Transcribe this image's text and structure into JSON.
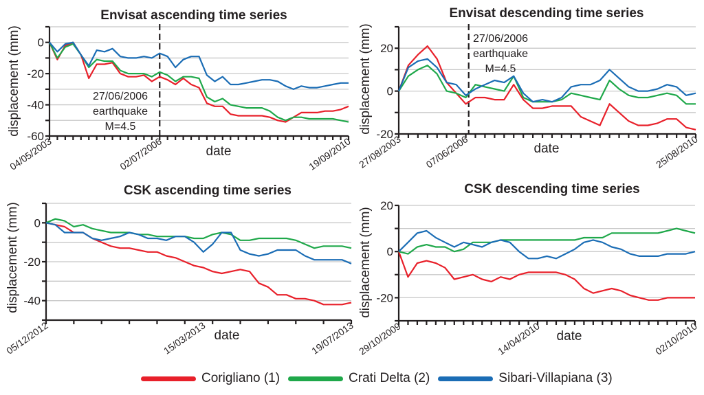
{
  "legend": [
    {
      "label": "Corigliano (1)",
      "color": "#e8202a"
    },
    {
      "label": "Crati Delta (2)",
      "color": "#1fa84a"
    },
    {
      "label": "Sibari-Villapiana (3)",
      "color": "#1b6db5"
    }
  ],
  "chart_data": [
    {
      "type": "line",
      "title": "Envisat ascending time series",
      "xlabel": "date",
      "ylabel": "displacement (mm)",
      "ylim": [
        -60,
        10
      ],
      "yticks": [
        0,
        -20,
        -40,
        -60
      ],
      "ytick_labels": [
        "0",
        "-20",
        "-40",
        "-60"
      ],
      "xtick_labels": [
        "04/05/2003",
        "02/07/2006",
        "19/09/2010"
      ],
      "xtick_label_index": [
        0,
        14,
        38
      ],
      "n_points": 39,
      "grid": true,
      "annotation": {
        "lines": [
          "27/06/2006",
          "earthquake",
          "M=4.5"
        ],
        "event_index": 14
      },
      "series": [
        {
          "name": "Corigliano (1)",
          "values": [
            0,
            -11,
            -2,
            0,
            -8,
            -23,
            -14,
            -14,
            -13,
            -20,
            -22,
            -22,
            -21,
            -25,
            -22,
            -24,
            -27,
            -23,
            -27,
            -29,
            -39,
            -41,
            -41,
            -46,
            -47,
            -47,
            -47,
            -47,
            -48,
            -50,
            -51,
            -48,
            -45,
            -45,
            -45,
            -44,
            -44,
            -43,
            -41
          ]
        },
        {
          "name": "Crati Delta (2)",
          "values": [
            0,
            -10,
            -3,
            -1,
            -8,
            -16,
            -11,
            -12,
            -12,
            -18,
            -20,
            -20,
            -20,
            -22,
            -19,
            -21,
            -25,
            -22,
            -22,
            -23,
            -35,
            -38,
            -36,
            -40,
            -41,
            -42,
            -42,
            -42,
            -44,
            -48,
            -50,
            -48,
            -48,
            -49,
            -49,
            -49,
            -49,
            -50,
            -51
          ]
        },
        {
          "name": "Sibari-Villapiana (3)",
          "values": [
            0,
            -6,
            -1,
            0,
            -8,
            -15,
            -5,
            -6,
            -4,
            -9,
            -10,
            -10,
            -9,
            -10,
            -7,
            -9,
            -16,
            -11,
            -9,
            -9,
            -21,
            -25,
            -22,
            -27,
            -27,
            -26,
            -25,
            -24,
            -24,
            -25,
            -28,
            -30,
            -28,
            -29,
            -29,
            -28,
            -27,
            -26,
            -26
          ]
        }
      ]
    },
    {
      "type": "line",
      "title": "Envisat descending time series",
      "xlabel": "date",
      "ylabel": "displacement (mm)",
      "ylim": [
        -20,
        30
      ],
      "yticks": [
        20,
        0,
        -20
      ],
      "ytick_labels": [
        "20",
        "0",
        "-20"
      ],
      "gridlines": [
        30,
        20,
        10,
        0,
        -10,
        -20
      ],
      "xtick_labels": [
        "27/08/2003",
        "07/06/2006",
        "25/08/2010"
      ],
      "xtick_label_index": [
        0,
        7,
        31
      ],
      "n_points": 32,
      "grid": true,
      "annotation": {
        "lines": [
          "27/06/2006",
          "earthquake",
          "M=4.5"
        ],
        "event_index": 7.3
      },
      "series": [
        {
          "name": "Corigliano (1)",
          "values": [
            0,
            12,
            17,
            21,
            15,
            4,
            -1,
            -6,
            -3,
            -3,
            -4,
            -4,
            3,
            -4,
            -8,
            -8,
            -7,
            -7,
            -7,
            -12,
            -14,
            -16,
            -6,
            -10,
            -14,
            -16,
            -16,
            -15,
            -13,
            -13,
            -17,
            -18
          ]
        },
        {
          "name": "Crati Delta (2)",
          "values": [
            0,
            7,
            10,
            12,
            8,
            0,
            -1,
            -3,
            3,
            2,
            1,
            0,
            7,
            -3,
            -5,
            -5,
            -5,
            -4,
            -1,
            -2,
            -3,
            -4,
            5,
            1,
            -2,
            -3,
            -3,
            -2,
            -1,
            -2,
            -6,
            -6
          ]
        },
        {
          "name": "Sibari-Villapiana (3)",
          "values": [
            0,
            11,
            14,
            15,
            11,
            4,
            3,
            -2,
            1,
            3,
            5,
            4,
            7,
            -1,
            -5,
            -4,
            -5,
            -3,
            2,
            3,
            3,
            5,
            10,
            6,
            2,
            0,
            0,
            1,
            3,
            2,
            -2,
            -1
          ]
        }
      ]
    },
    {
      "type": "line",
      "title": "CSK ascending time series",
      "xlabel": "date",
      "ylabel": "displacement (mm)",
      "ylim": [
        -50,
        10
      ],
      "yticks": [
        0,
        -20,
        -40
      ],
      "ytick_labels": [
        "0",
        "-20",
        "-40"
      ],
      "gridlines": [
        10,
        0,
        -10,
        -20,
        -30,
        -40
      ],
      "xtick_labels": [
        "05/12/2012",
        "15/03/2013",
        "19/07/2013"
      ],
      "xtick_label_index": [
        0,
        17,
        33
      ],
      "n_points": 34,
      "major_ticks": 11,
      "grid": true,
      "series": [
        {
          "name": "Corigliano (1)",
          "values": [
            0,
            -1,
            -2,
            -5,
            -5,
            -8,
            -10,
            -12,
            -13,
            -13,
            -14,
            -15,
            -15,
            -17,
            -18,
            -20,
            -22,
            -23,
            -25,
            -26,
            -25,
            -24,
            -25,
            -31,
            -33,
            -37,
            -37,
            -39,
            -39,
            -40,
            -42,
            -42,
            -42,
            -41
          ]
        },
        {
          "name": "Crati Delta (2)",
          "values": [
            0,
            2,
            1,
            -2,
            -1,
            -3,
            -4,
            -5,
            -5,
            -5,
            -6,
            -6,
            -7,
            -7,
            -7,
            -7,
            -8,
            -8,
            -6,
            -5,
            -6,
            -9,
            -9,
            -8,
            -8,
            -8,
            -8,
            -9,
            -11,
            -13,
            -12,
            -12,
            -12,
            -13
          ]
        },
        {
          "name": "Sibari-Villapiana (3)",
          "values": [
            0,
            -1,
            -5,
            -5,
            -5,
            -8,
            -9,
            -8,
            -7,
            -5,
            -6,
            -8,
            -8,
            -9,
            -7,
            -7,
            -10,
            -15,
            -11,
            -5,
            -5,
            -14,
            -16,
            -17,
            -16,
            -14,
            -14,
            -14,
            -17,
            -19,
            -19,
            -19,
            -19,
            -21
          ]
        }
      ]
    },
    {
      "type": "line",
      "title": "CSK descending time series",
      "xlabel": "date",
      "ylabel": "displacement (mm)",
      "ylim": [
        -30,
        20
      ],
      "yticks": [
        20,
        0,
        -20
      ],
      "ytick_labels": [
        "20",
        "0",
        "-20"
      ],
      "gridlines": [
        20,
        10,
        0,
        -10,
        -20
      ],
      "xtick_labels": [
        "29/10/2009",
        "14/04/2010",
        "02/10/2010"
      ],
      "xtick_label_index": [
        0,
        15,
        32
      ],
      "n_points": 33,
      "grid": true,
      "series": [
        {
          "name": "Corigliano (1)",
          "values": [
            0,
            -11,
            -5,
            -4,
            -5,
            -7,
            -12,
            -11,
            -10,
            -12,
            -13,
            -11,
            -12,
            -10,
            -9,
            -9,
            -9,
            -9,
            -10,
            -12,
            -16,
            -18,
            -17,
            -16,
            -17,
            -19,
            -20,
            -21,
            -21,
            -20,
            -20,
            -20,
            -20
          ]
        },
        {
          "name": "Crati Delta (2)",
          "values": [
            0,
            -1,
            2,
            3,
            2,
            2,
            0,
            1,
            4,
            4,
            4,
            5,
            5,
            5,
            5,
            5,
            5,
            5,
            5,
            5,
            6,
            6,
            6,
            8,
            8,
            8,
            8,
            8,
            8,
            9,
            10,
            9,
            8
          ]
        },
        {
          "name": "Sibari-Villapiana (3)",
          "values": [
            0,
            4,
            8,
            9,
            6,
            4,
            2,
            4,
            3,
            2,
            4,
            5,
            4,
            0,
            -3,
            -3,
            -2,
            -3,
            -1,
            1,
            4,
            5,
            4,
            2,
            1,
            -1,
            -2,
            -2,
            -2,
            -1,
            -1,
            -1,
            0
          ]
        }
      ]
    }
  ]
}
